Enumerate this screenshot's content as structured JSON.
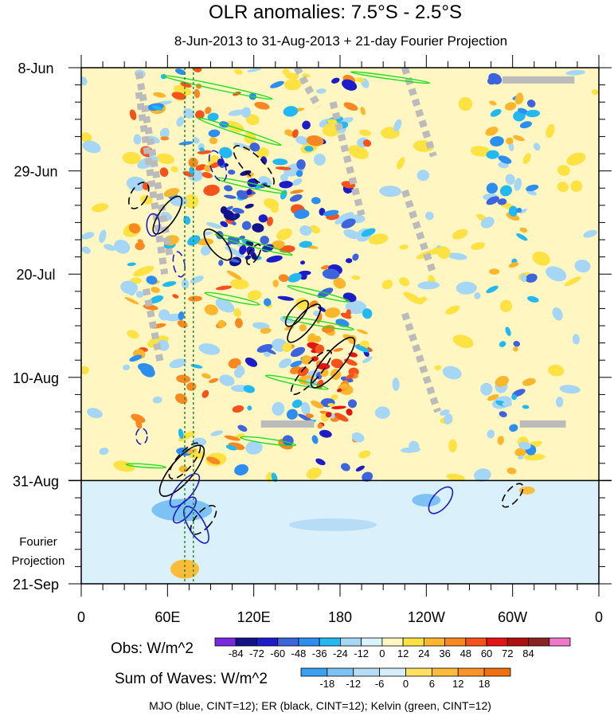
{
  "chart_data": {
    "type": "heatmap",
    "title": "OLR anomalies: 7.5°S - 2.5°S",
    "subtitle": "8-Jun-2013 to 31-Aug-2013 + 21-day Fourier Projection",
    "x_ticks": [
      "0",
      "60E",
      "120E",
      "180",
      "120W",
      "60W",
      "0"
    ],
    "x_values": [
      0,
      60,
      120,
      180,
      240,
      300,
      360
    ],
    "y_ticks": [
      "8-Jun",
      "29-Jun",
      "20-Jul",
      "10-Aug",
      "31-Aug",
      "21-Sep"
    ],
    "y_days": [
      0,
      21,
      42,
      63,
      84,
      105
    ],
    "projection_start_day": 84,
    "projection_label_line1": "Fourier",
    "projection_label_line2": "Projection",
    "obs_title": "Obs: W/m^2",
    "obs_levels": [
      "-84",
      "-72",
      "-60",
      "-48",
      "-36",
      "-24",
      "-12",
      "0",
      "12",
      "24",
      "36",
      "48",
      "60",
      "72",
      "84"
    ],
    "obs_colors": [
      "#7a28e0",
      "#12128a",
      "#1c1cc8",
      "#3c64dc",
      "#2c8ef0",
      "#22b8f2",
      "#a6d6f6",
      "#d8f4fb",
      "#fff6c2",
      "#fde242",
      "#fbb62c",
      "#f98820",
      "#f6521c",
      "#e41414",
      "#b01010",
      "#8a2222",
      "#f078c8"
    ],
    "waves_title": "Sum of Waves: W/m^2",
    "waves_levels": [
      "-18",
      "-12",
      "-6",
      "0",
      "6",
      "12",
      "18"
    ],
    "waves_colors": [
      "#3aa0f0",
      "#7cc2f4",
      "#b6dcf6",
      "#d6eefa",
      "#fde060",
      "#fbbc3a",
      "#f99428",
      "#f07010"
    ],
    "contours_caption": "MJO (blue, CINT=12); ER (black, CINT=12); Kelvin (green, CINT=12)",
    "colors": {
      "mjo": "#1c1cc8",
      "er": "#000000",
      "kelvin": "#22dd22",
      "missing": "#bbbbbb",
      "ref_line": "#2a8a2a"
    }
  }
}
